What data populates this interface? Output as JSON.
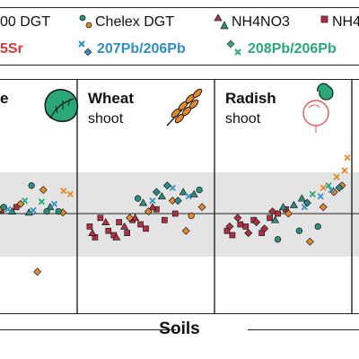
{
  "legend": {
    "items": [
      {
        "label": "00 DGT",
        "color": "#222222"
      },
      {
        "label": "Chelex DGT",
        "color": "#222222"
      },
      {
        "label": "NH4NO3",
        "color": "#222222"
      },
      {
        "label": "NH4",
        "color": "#222222"
      }
    ],
    "iso_red": "5Sr",
    "iso_blue": "207Pb/206Pb",
    "iso_green": "208Pb/206Pb"
  },
  "panels": [
    {
      "title": "e",
      "subtitle": ""
    },
    {
      "title": "Wheat",
      "subtitle": "shoot"
    },
    {
      "title": "Radish",
      "subtitle": "shoot"
    }
  ],
  "xlabel": "Soils",
  "colors": {
    "maroon": "#b03043",
    "teal": "#2a8f80",
    "orange": "#e58a2b",
    "blue": "#3a8fc4",
    "green": "#2aa877",
    "band": "#e4e4e4"
  },
  "chart_data": {
    "type": "scatter",
    "title": "",
    "xlabel": "Soils",
    "ylabel": "",
    "band": [
      -1,
      1
    ],
    "series": [
      {
        "panel": 0,
        "color": "maroon",
        "marker": "square",
        "x": [
          0.12,
          0.3
        ],
        "y": [
          0.15,
          0.3
        ]
      },
      {
        "panel": 0,
        "color": "teal",
        "marker": "triangle",
        "x": [
          0.25,
          0.45,
          0.7
        ],
        "y": [
          0.1,
          0.05,
          0.3
        ]
      },
      {
        "panel": 0,
        "color": "orange",
        "marker": "diamond",
        "x": [
          0.1,
          0.35,
          0.55,
          0.62,
          0.85
        ],
        "y": [
          0.2,
          0.45,
          -2.7,
          1.1,
          0.05
        ]
      },
      {
        "panel": 0,
        "color": "blue",
        "marker": "cross",
        "x": [
          0.2,
          0.5,
          0.75
        ],
        "y": [
          0.2,
          0.15,
          0.45
        ]
      },
      {
        "panel": 0,
        "color": "green",
        "marker": "cross",
        "x": [
          0.4,
          0.6
        ],
        "y": [
          0.6,
          0.55
        ]
      },
      {
        "panel": 0,
        "color": "teal",
        "marker": "circle",
        "x": [
          0.15,
          0.48,
          0.66,
          0.8
        ],
        "y": [
          0.3,
          1.3,
          0.1,
          0.1
        ]
      },
      {
        "panel": 0,
        "color": "orange",
        "marker": "cross",
        "x": [
          0.86,
          0.94
        ],
        "y": [
          1.05,
          0.9
        ]
      },
      {
        "panel": 1,
        "color": "maroon",
        "marker": "square",
        "x": [
          0.08,
          0.12,
          0.16,
          0.22,
          0.26,
          0.3,
          0.36,
          0.4,
          0.46,
          0.5,
          0.58,
          0.64,
          0.72
        ],
        "y": [
          -0.6,
          -1.1,
          -0.2,
          -0.8,
          -1.0,
          -0.4,
          -0.9,
          -0.3,
          -0.5,
          -0.7,
          0.2,
          -0.3,
          0.0
        ]
      },
      {
        "panel": 1,
        "color": "maroon",
        "marker": "triangle",
        "x": [
          0.1,
          0.2,
          0.28,
          0.34,
          0.42,
          0.55
        ],
        "y": [
          -0.9,
          -0.4,
          -1.1,
          -0.6,
          -0.2,
          0.3
        ]
      },
      {
        "panel": 1,
        "color": "teal",
        "marker": "triangle",
        "x": [
          0.48,
          0.62,
          0.78,
          0.86
        ],
        "y": [
          0.5,
          0.8,
          1.0,
          0.9
        ]
      },
      {
        "panel": 1,
        "color": "orange",
        "marker": "diamond",
        "x": [
          0.38,
          0.52,
          0.7,
          0.8,
          0.92
        ],
        "y": [
          -0.2,
          0.1,
          0.6,
          -0.8,
          0.3
        ]
      },
      {
        "panel": 1,
        "color": "blue",
        "marker": "cross",
        "x": [
          0.55,
          0.7,
          0.82
        ],
        "y": [
          0.6,
          1.2,
          0.8
        ]
      },
      {
        "panel": 1,
        "color": "teal",
        "marker": "diamond",
        "x": [
          0.58,
          0.66,
          0.74
        ],
        "y": [
          1.0,
          1.3,
          0.6
        ]
      },
      {
        "panel": 1,
        "color": "teal",
        "marker": "circle",
        "x": [
          0.44,
          0.9
        ],
        "y": [
          0.7,
          1.1
        ]
      },
      {
        "panel": 1,
        "color": "orange",
        "marker": "circle",
        "x": [
          0.84
        ],
        "y": [
          -0.1
        ]
      },
      {
        "panel": 2,
        "color": "maroon",
        "marker": "square",
        "x": [
          0.08,
          0.12,
          0.18,
          0.22,
          0.28,
          0.34,
          0.4,
          0.46,
          0.52
        ],
        "y": [
          -0.8,
          -1.0,
          -0.5,
          -0.6,
          -0.3,
          -0.9,
          -0.2,
          0.0,
          0.2
        ]
      },
      {
        "panel": 2,
        "color": "maroon",
        "marker": "diamond",
        "x": [
          0.1,
          0.16,
          0.24,
          0.3,
          0.36,
          0.42
        ],
        "y": [
          -0.6,
          -0.2,
          -0.9,
          -0.4,
          -0.7,
          0.1
        ]
      },
      {
        "panel": 2,
        "color": "teal",
        "marker": "triangle",
        "x": [
          0.44,
          0.5,
          0.58,
          0.64
        ],
        "y": [
          -0.3,
          0.3,
          0.4,
          0.7
        ]
      },
      {
        "panel": 2,
        "color": "teal",
        "marker": "circle",
        "x": [
          0.46,
          0.62,
          0.76
        ],
        "y": [
          -1.2,
          -0.8,
          -0.6
        ]
      },
      {
        "panel": 2,
        "color": "orange",
        "marker": "diamond",
        "x": [
          0.54,
          0.7,
          0.8,
          0.88,
          0.94
        ],
        "y": [
          0.0,
          -1.3,
          0.3,
          1.0,
          1.3
        ]
      },
      {
        "panel": 2,
        "color": "blue",
        "marker": "cross",
        "x": [
          0.66,
          0.78,
          0.86
        ],
        "y": [
          0.3,
          0.8,
          1.1
        ]
      },
      {
        "panel": 2,
        "color": "green",
        "marker": "cross",
        "x": [
          0.72,
          0.84
        ],
        "y": [
          0.9,
          1.3
        ]
      },
      {
        "panel": 2,
        "color": "orange",
        "marker": "cross",
        "x": [
          0.8,
          0.9,
          0.96,
          0.98
        ],
        "y": [
          1.2,
          1.7,
          2.0,
          2.6
        ]
      },
      {
        "panel": 2,
        "color": "teal",
        "marker": "diamond",
        "x": [
          0.68,
          0.92
        ],
        "y": [
          0.5,
          1.2
        ]
      }
    ]
  }
}
